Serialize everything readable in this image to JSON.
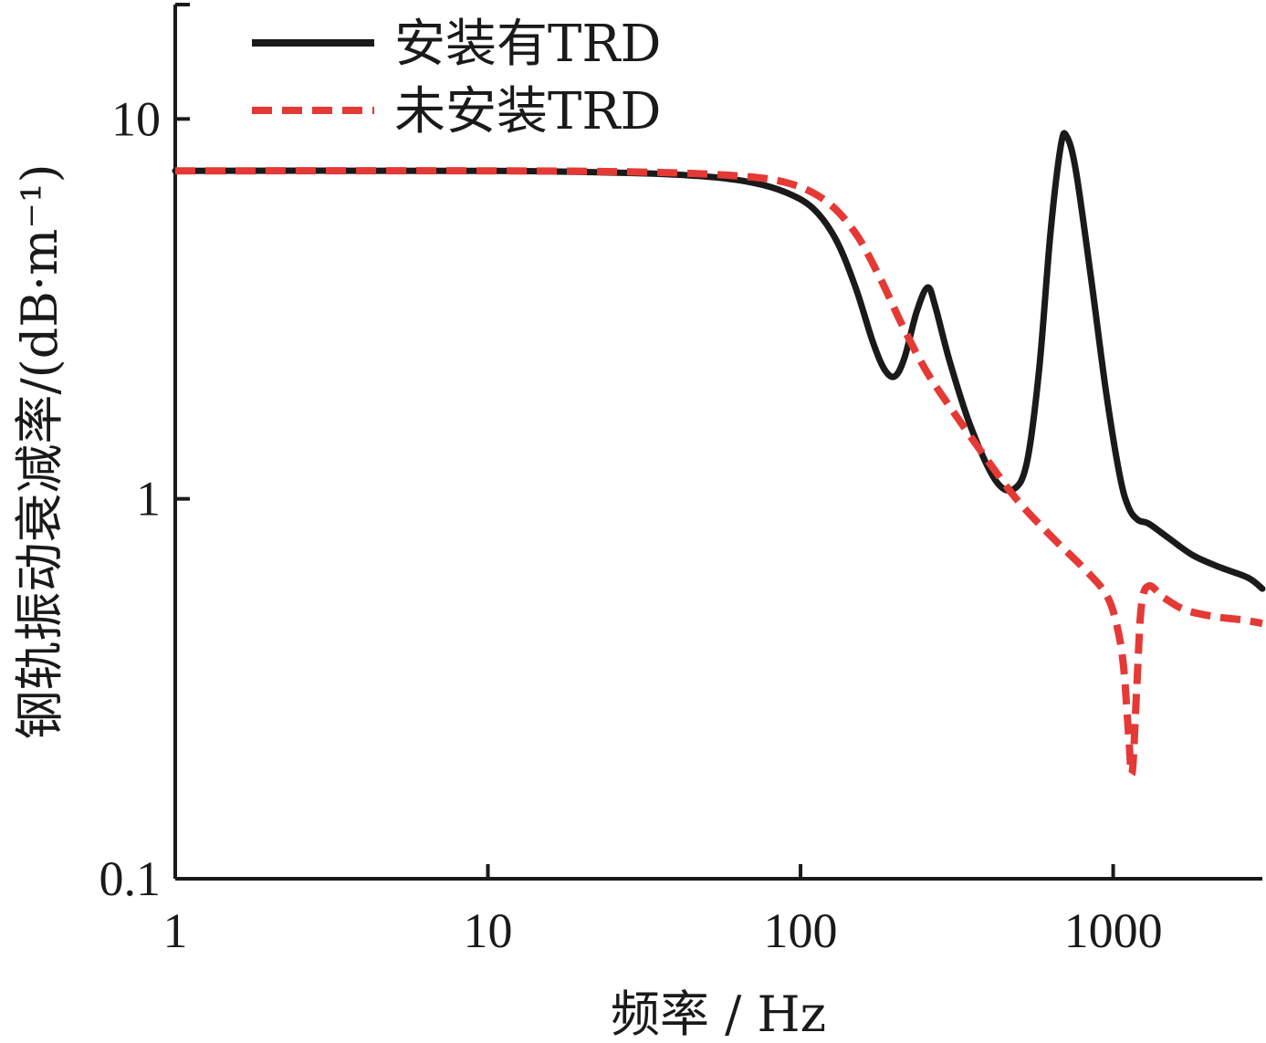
{
  "chart_data": {
    "type": "line",
    "x_scale": "log",
    "y_scale": "log",
    "xlabel": "频率 / Hz",
    "ylabel": "钢轨振动衰减率/(dB·m⁻¹)",
    "xlim": [
      1,
      3000
    ],
    "ylim": [
      0.1,
      20
    ],
    "x_ticks": [
      1,
      10,
      100,
      1000
    ],
    "x_tick_labels": [
      "1",
      "10",
      "100",
      "1000"
    ],
    "y_ticks": [
      0.1,
      1,
      10
    ],
    "y_tick_labels": [
      "0.1",
      "1",
      "10"
    ],
    "grid": false,
    "legend_position": "top-left",
    "series": [
      {
        "name": "安装有TRD",
        "color": "#1a1a1a",
        "style": "solid",
        "points": [
          [
            1,
            7.3
          ],
          [
            10,
            7.3
          ],
          [
            30,
            7.2
          ],
          [
            50,
            7.05
          ],
          [
            70,
            6.8
          ],
          [
            90,
            6.4
          ],
          [
            110,
            5.8
          ],
          [
            130,
            4.8
          ],
          [
            150,
            3.6
          ],
          [
            170,
            2.6
          ],
          [
            185,
            2.2
          ],
          [
            200,
            2.1
          ],
          [
            215,
            2.35
          ],
          [
            235,
            3.1
          ],
          [
            255,
            3.6
          ],
          [
            270,
            3.2
          ],
          [
            300,
            2.3
          ],
          [
            350,
            1.55
          ],
          [
            420,
            1.12
          ],
          [
            480,
            1.06
          ],
          [
            530,
            1.25
          ],
          [
            580,
            2.2
          ],
          [
            630,
            5.0
          ],
          [
            680,
            8.5
          ],
          [
            710,
            9.0
          ],
          [
            760,
            7.3
          ],
          [
            850,
            3.8
          ],
          [
            950,
            1.9
          ],
          [
            1050,
            1.15
          ],
          [
            1120,
            0.95
          ],
          [
            1200,
            0.88
          ],
          [
            1300,
            0.86
          ],
          [
            1500,
            0.79
          ],
          [
            1800,
            0.71
          ],
          [
            2200,
            0.66
          ],
          [
            2700,
            0.62
          ],
          [
            3000,
            0.58
          ]
        ]
      },
      {
        "name": "未安装TRD",
        "color": "#e53935",
        "style": "dashed",
        "points": [
          [
            1,
            7.3
          ],
          [
            10,
            7.3
          ],
          [
            30,
            7.25
          ],
          [
            60,
            7.1
          ],
          [
            90,
            6.8
          ],
          [
            120,
            6.1
          ],
          [
            150,
            5.0
          ],
          [
            180,
            3.8
          ],
          [
            210,
            2.9
          ],
          [
            250,
            2.2
          ],
          [
            300,
            1.75
          ],
          [
            400,
            1.25
          ],
          [
            500,
            0.98
          ],
          [
            650,
            0.78
          ],
          [
            800,
            0.66
          ],
          [
            950,
            0.56
          ],
          [
            1030,
            0.46
          ],
          [
            1080,
            0.36
          ],
          [
            1120,
            0.24
          ],
          [
            1150,
            0.19
          ],
          [
            1190,
            0.32
          ],
          [
            1230,
            0.52
          ],
          [
            1300,
            0.59
          ],
          [
            1450,
            0.55
          ],
          [
            1700,
            0.51
          ],
          [
            2100,
            0.49
          ],
          [
            2600,
            0.48
          ],
          [
            3000,
            0.47
          ]
        ]
      }
    ]
  }
}
